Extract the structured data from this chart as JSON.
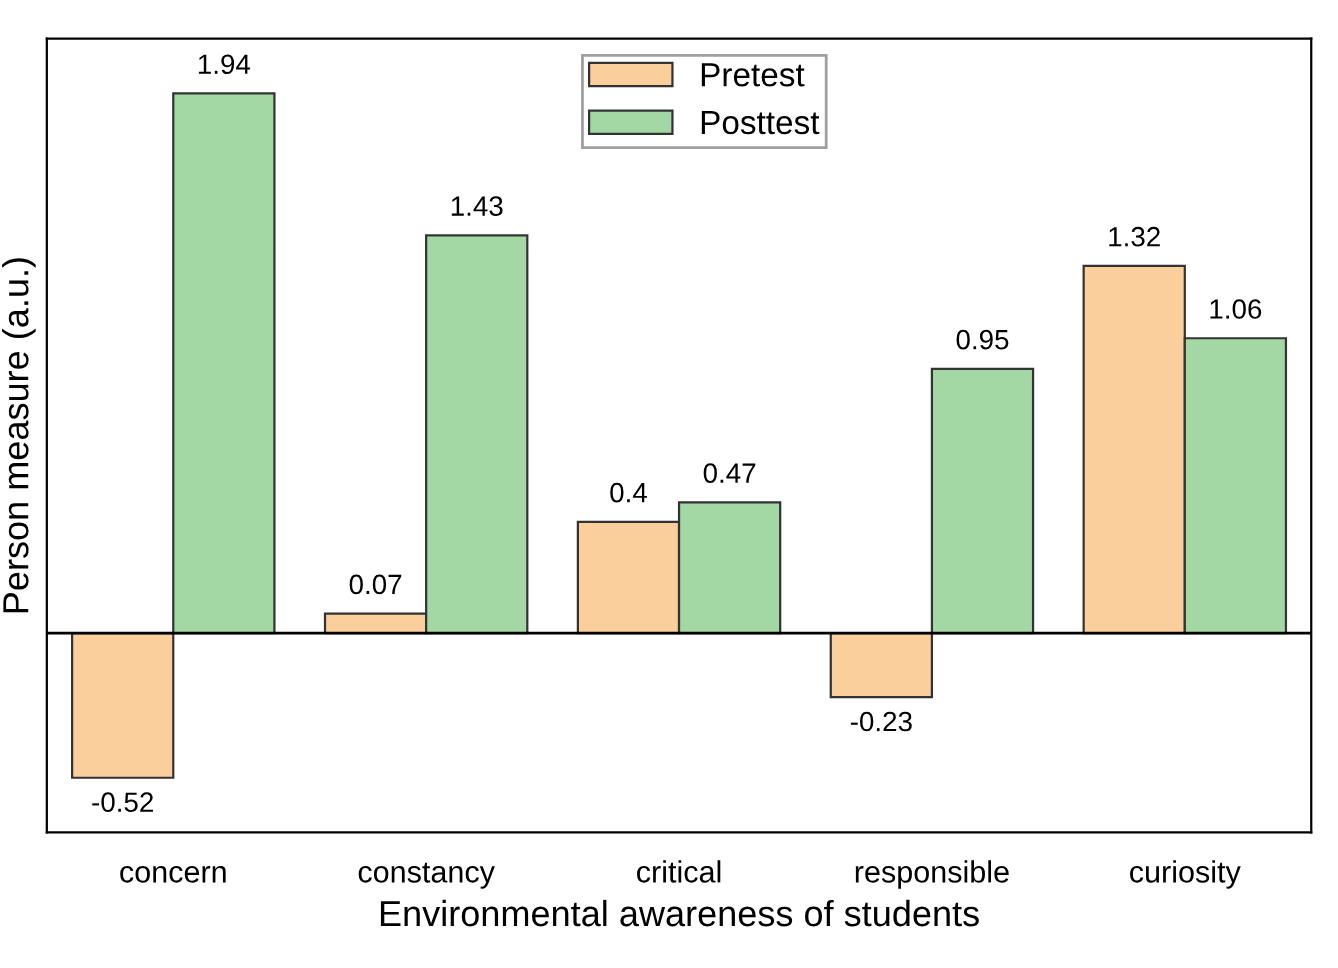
{
  "chart_data": {
    "type": "bar",
    "xlabel": "Environmental awareness of students",
    "ylabel": "Person measure (a.u.)",
    "categories": [
      "concern",
      "constancy",
      "critical",
      "responsible",
      "curiosity"
    ],
    "series": [
      {
        "name": "Pretest",
        "color": "#fbcf9c",
        "values": [
          -0.52,
          0.07,
          0.4,
          -0.23,
          1.32
        ]
      },
      {
        "name": "Posttest",
        "color": "#a3d8a5",
        "values": [
          1.94,
          1.43,
          0.47,
          0.95,
          1.06
        ]
      }
    ],
    "data_labels": true,
    "legend": "top",
    "tick_labels": "x",
    "grid": false
  }
}
